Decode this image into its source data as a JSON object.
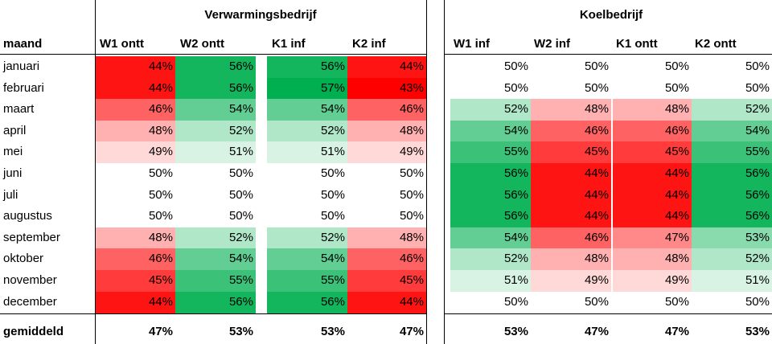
{
  "group_titles": [
    "Verwarmingsbedrijf",
    "Koelbedrijf"
  ],
  "headers": {
    "month": "maand",
    "heating": [
      "W1 ontt",
      "W2 ontt",
      "K1 inf",
      "K2 inf"
    ],
    "cooling": [
      "W1 inf",
      "W2 inf",
      "K1 ontt",
      "K2 ontt"
    ]
  },
  "rows": [
    {
      "month": "januari",
      "heating": [
        "44%",
        "56%",
        "56%",
        "44%"
      ],
      "cooling": [
        "50%",
        "50%",
        "50%",
        "50%"
      ]
    },
    {
      "month": "februari",
      "heating": [
        "44%",
        "56%",
        "57%",
        "43%"
      ],
      "cooling": [
        "50%",
        "50%",
        "50%",
        "50%"
      ]
    },
    {
      "month": "maart",
      "heating": [
        "46%",
        "54%",
        "54%",
        "46%"
      ],
      "cooling": [
        "52%",
        "48%",
        "48%",
        "52%"
      ]
    },
    {
      "month": "april",
      "heating": [
        "48%",
        "52%",
        "52%",
        "48%"
      ],
      "cooling": [
        "54%",
        "46%",
        "46%",
        "54%"
      ]
    },
    {
      "month": "mei",
      "heating": [
        "49%",
        "51%",
        "51%",
        "49%"
      ],
      "cooling": [
        "55%",
        "45%",
        "45%",
        "55%"
      ]
    },
    {
      "month": "juni",
      "heating": [
        "50%",
        "50%",
        "50%",
        "50%"
      ],
      "cooling": [
        "56%",
        "44%",
        "44%",
        "56%"
      ]
    },
    {
      "month": "juli",
      "heating": [
        "50%",
        "50%",
        "50%",
        "50%"
      ],
      "cooling": [
        "56%",
        "44%",
        "44%",
        "56%"
      ]
    },
    {
      "month": "augustus",
      "heating": [
        "50%",
        "50%",
        "50%",
        "50%"
      ],
      "cooling": [
        "56%",
        "44%",
        "44%",
        "56%"
      ]
    },
    {
      "month": "september",
      "heating": [
        "48%",
        "52%",
        "52%",
        "48%"
      ],
      "cooling": [
        "54%",
        "46%",
        "47%",
        "53%"
      ]
    },
    {
      "month": "oktober",
      "heating": [
        "46%",
        "54%",
        "54%",
        "46%"
      ],
      "cooling": [
        "52%",
        "48%",
        "48%",
        "52%"
      ]
    },
    {
      "month": "november",
      "heating": [
        "45%",
        "55%",
        "55%",
        "45%"
      ],
      "cooling": [
        "51%",
        "49%",
        "49%",
        "51%"
      ]
    },
    {
      "month": "december",
      "heating": [
        "44%",
        "56%",
        "56%",
        "44%"
      ],
      "cooling": [
        "50%",
        "50%",
        "50%",
        "50%"
      ]
    }
  ],
  "average": {
    "label": "gemiddeld",
    "heating": [
      "47%",
      "53%",
      "53%",
      "47%"
    ],
    "cooling": [
      "53%",
      "47%",
      "47%",
      "53%"
    ]
  },
  "colors": {
    "low": "#ff0000",
    "high": "#00b050",
    "neutral": "#ffffff"
  }
}
